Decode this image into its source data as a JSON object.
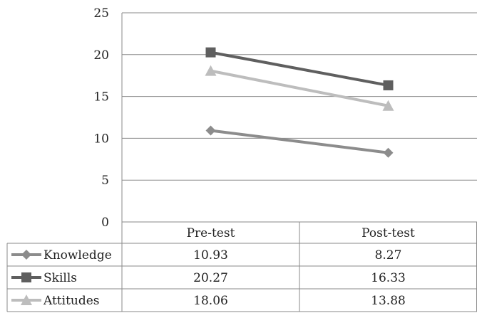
{
  "chart_data": {
    "type": "line",
    "categories": [
      "Pre-test",
      "Post-test"
    ],
    "ylim": [
      0,
      25
    ],
    "yticks": [
      0,
      5,
      10,
      15,
      20,
      25
    ],
    "grid": true,
    "legend": "data-table",
    "series": [
      {
        "name": "Knowledge",
        "values": [
          10.93,
          8.27
        ],
        "labels": [
          "10.93",
          "8.27"
        ],
        "marker": "diamond",
        "color": "#8c8c8c"
      },
      {
        "name": "Skills",
        "values": [
          20.27,
          16.33
        ],
        "labels": [
          "20.27",
          "16.33"
        ],
        "marker": "square",
        "color": "#5f5f5f"
      },
      {
        "name": "Attitudes",
        "values": [
          18.06,
          13.88
        ],
        "labels": [
          "18.06",
          "13.88"
        ],
        "marker": "triangle",
        "color": "#bdbdbd"
      }
    ]
  }
}
